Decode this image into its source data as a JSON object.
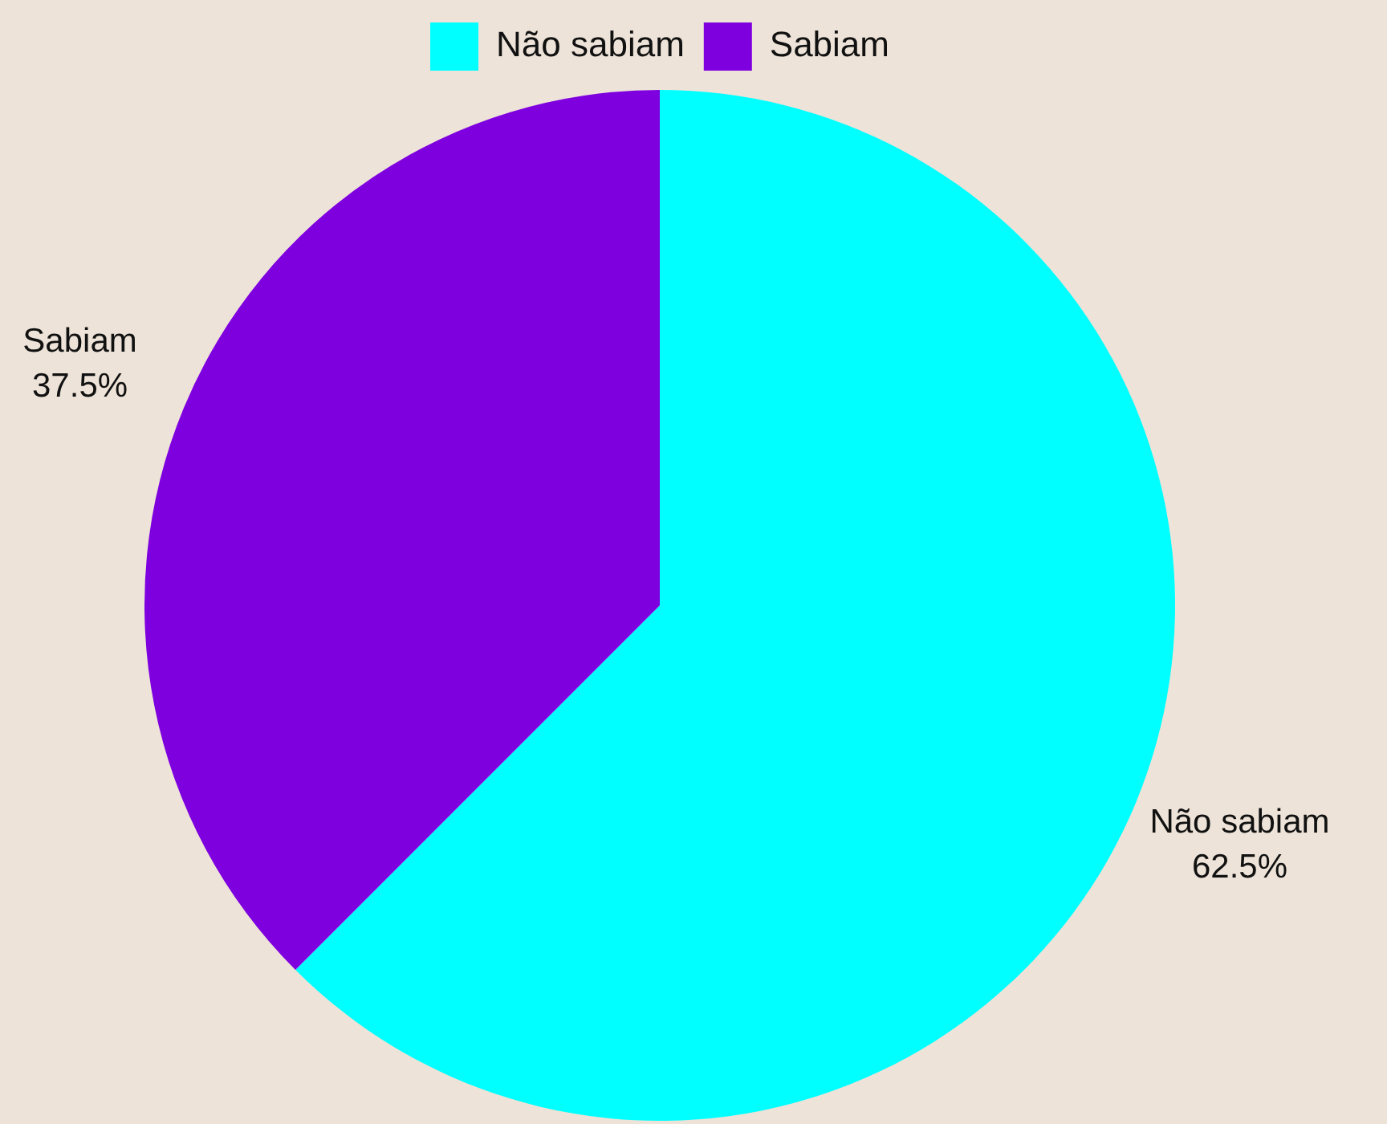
{
  "chart_data": {
    "type": "pie",
    "categories": [
      "Não sabiam",
      "Sabiam"
    ],
    "values": [
      62.5,
      37.5
    ],
    "colors": [
      "#00ffff",
      "#7f00df"
    ],
    "value_labels": [
      "62.5%",
      "37.5%"
    ],
    "legend": "top"
  }
}
